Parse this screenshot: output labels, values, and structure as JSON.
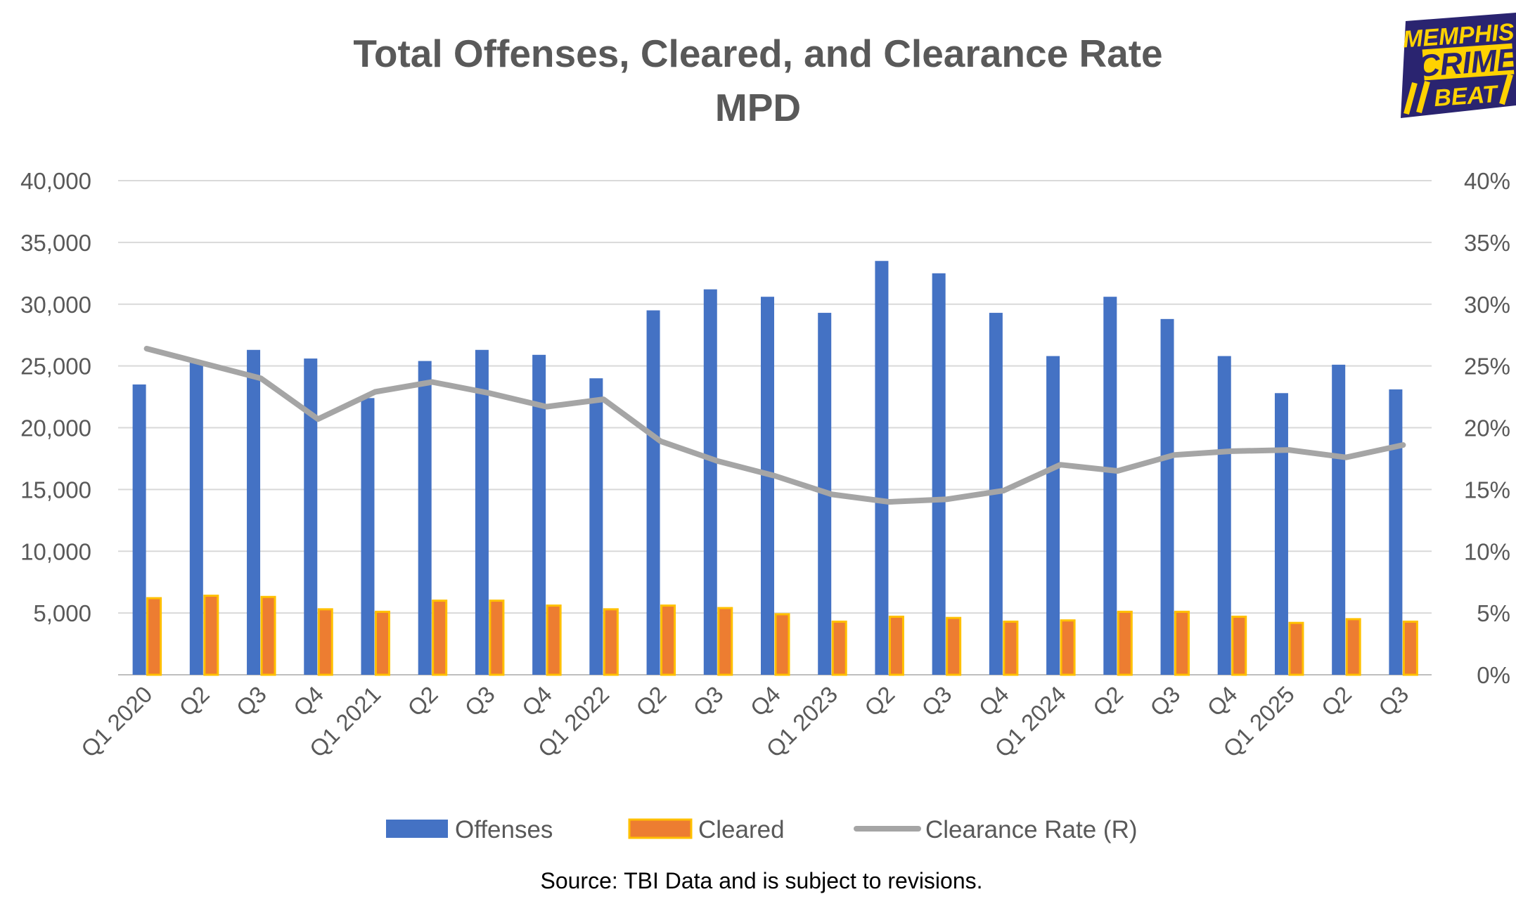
{
  "logo": {
    "line1": "MEMPHIS",
    "line2": "CRIME",
    "line3": "BEAT"
  },
  "source_note": "Source:  TBI Data and is subject to revisions.",
  "colors": {
    "offenses": "#4472C4",
    "cleared": "#ED7D31",
    "cleared_border": "#FFC000",
    "rate": "#A5A5A5",
    "grid": "#D9D9D9",
    "text": "#595959",
    "logo_bg": "#2A2470",
    "logo_accent": "#FFD200"
  },
  "chart_data": {
    "type": "bar",
    "title": "Total Offenses, Cleared, and Clearance Rate",
    "subtitle": "MPD",
    "xlabel": "",
    "ylabel": "",
    "ylim": [
      0,
      40000
    ],
    "y2lim": [
      0,
      40
    ],
    "y_ticks": [
      "40,000",
      "35,000",
      "30,000",
      "25,000",
      "20,000",
      "15,000",
      "10,000",
      "5,000",
      ""
    ],
    "y2_ticks": [
      "40%",
      "35%",
      "30%",
      "25%",
      "20%",
      "15%",
      "10%",
      "5%",
      "0%"
    ],
    "categories": [
      "Q1 2020",
      "Q2",
      "Q3",
      "Q4",
      "Q1 2021",
      "Q2",
      "Q3",
      "Q4",
      "Q1 2022",
      "Q2",
      "Q3",
      "Q4",
      "Q1 2023",
      "Q2",
      "Q3",
      "Q4",
      "Q1 2024",
      "Q2",
      "Q3",
      "Q4",
      "Q1 2025",
      "Q2",
      "Q3"
    ],
    "series": [
      {
        "name": "Offenses",
        "type": "bar",
        "axis": "left",
        "values": [
          23500,
          25400,
          26300,
          25600,
          22400,
          25400,
          26300,
          25900,
          24000,
          29500,
          31200,
          30600,
          29300,
          33500,
          32500,
          29300,
          25800,
          30600,
          28800,
          25800,
          22800,
          25100,
          23100
        ]
      },
      {
        "name": "Cleared",
        "type": "bar",
        "axis": "left",
        "values": [
          6200,
          6400,
          6300,
          5300,
          5100,
          6000,
          6000,
          5600,
          5300,
          5600,
          5400,
          4900,
          4300,
          4700,
          4600,
          4300,
          4400,
          5100,
          5100,
          4700,
          4200,
          4500,
          4300
        ]
      },
      {
        "name": "Clearance Rate (R)",
        "type": "line",
        "axis": "right",
        "values": [
          26.4,
          25.2,
          24.0,
          20.7,
          22.9,
          23.7,
          22.8,
          21.7,
          22.3,
          18.9,
          17.3,
          16.1,
          14.6,
          14.0,
          14.2,
          14.9,
          17.0,
          16.5,
          17.8,
          18.1,
          18.2,
          17.6,
          18.6
        ]
      }
    ],
    "legend": [
      "Offenses",
      "Cleared",
      "Clearance Rate (R)"
    ],
    "legend_position": "bottom",
    "grid": true
  }
}
